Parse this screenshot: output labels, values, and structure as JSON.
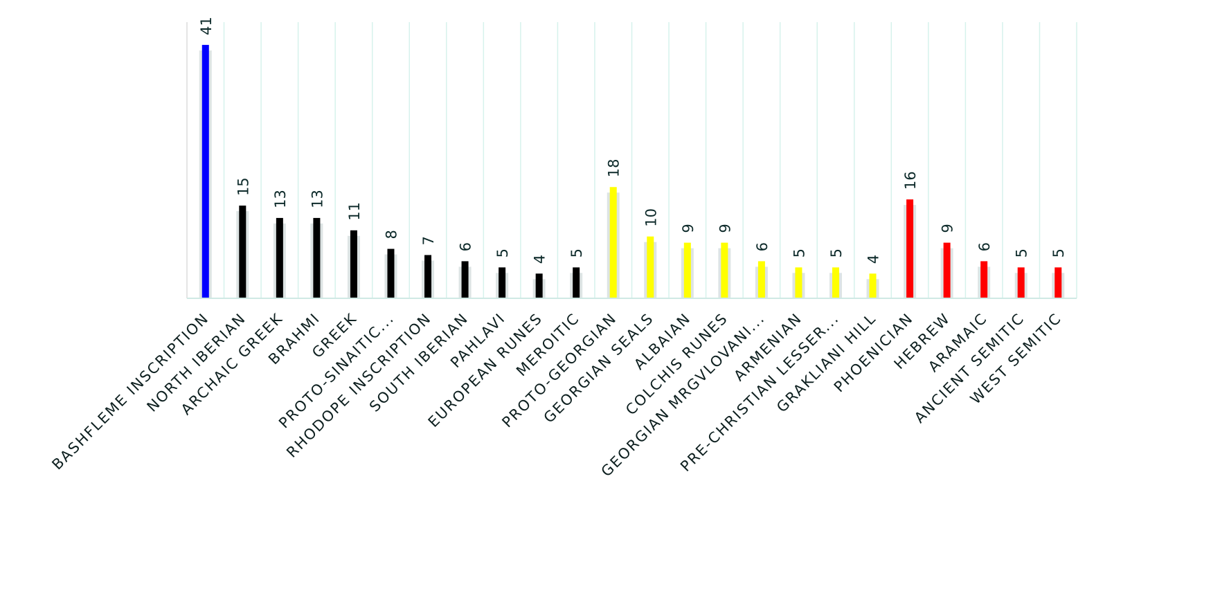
{
  "chart_data": {
    "type": "bar",
    "title": "",
    "xlabel": "",
    "ylabel": "",
    "ylim": [
      0,
      45
    ],
    "grid": "vertical",
    "categories": [
      "BASHFLEME INSCRIPTION",
      "NORTH IBERIAN",
      "ARCHAIC GREEK",
      "BRAHMI",
      "GREEK",
      "PROTO-SINAITIC...",
      "RHODOPE INSCRIPTION",
      "SOUTH IBERIAN",
      "PAHLAVI",
      "EUROPEAN RUNES",
      "MEROITIC",
      "PROTO-GEORGIAN",
      "GEORGIAN SEALS",
      "ALBAIAN",
      "COLCHIS RUNES",
      "GEORGIAN MRGVLOVANI...",
      "ARMENIAN",
      "PRE-CHRISTIAN LESSER...",
      "GRAKLIANI HILL",
      "PHOENICIAN",
      "HEBREW",
      "ARAMAIC",
      "ANCIENT SEMITIC",
      "WEST SEMITIC"
    ],
    "values": [
      41,
      15,
      13,
      13,
      11,
      8,
      7,
      6,
      5,
      4,
      5,
      18,
      10,
      9,
      9,
      6,
      5,
      5,
      4,
      16,
      9,
      6,
      5,
      5
    ],
    "colors": [
      "#0000ff",
      "#000000",
      "#000000",
      "#000000",
      "#000000",
      "#000000",
      "#000000",
      "#000000",
      "#000000",
      "#000000",
      "#000000",
      "#ffff00",
      "#ffff00",
      "#ffff00",
      "#ffff00",
      "#ffff00",
      "#ffff00",
      "#ffff00",
      "#ffff00",
      "#ff0000",
      "#ff0000",
      "#ff0000",
      "#ff0000",
      "#ff0000"
    ]
  }
}
